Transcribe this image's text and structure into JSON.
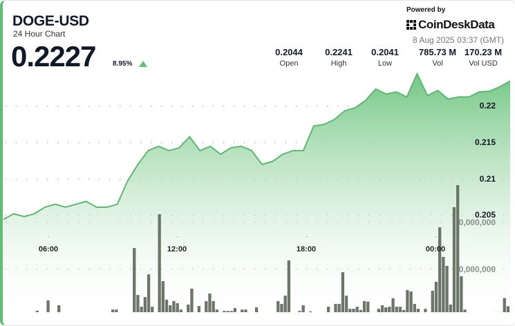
{
  "header": {
    "symbol": "DOGE-USD",
    "subtitle": "24 Hour Chart",
    "price": "0.2227",
    "change": "8.95%",
    "change_direction": "up",
    "stats": [
      {
        "value": "0.2044",
        "label": "Open"
      },
      {
        "value": "0.2241",
        "label": "High"
      },
      {
        "value": "0.2041",
        "label": "Low"
      },
      {
        "value": "785.73 M",
        "label": "Vol"
      },
      {
        "value": "170.23 M",
        "label": "Vol USD"
      }
    ],
    "powered_by": "Powered by",
    "brand": "CoinDeskData",
    "timestamp": "8 Aug 2025 03:37 (GMT)"
  },
  "colors": {
    "accent": "#5fbf72",
    "line": "#5cb96f",
    "bars": "#6b7568",
    "text": "#111827"
  },
  "chart_data": {
    "type": "area",
    "price_axis": {
      "ticks": [
        "0.22",
        "0.215",
        "0.21",
        "0.205"
      ],
      "tick_values": [
        0.22,
        0.215,
        0.21,
        0.205
      ]
    },
    "volume_axis": {
      "ticks": [
        "0,000,000",
        "0,000,000"
      ]
    },
    "time_ticks": [
      "06:00",
      "12:00",
      "18:00",
      "00:00"
    ],
    "grid": true,
    "price_series": [
      0.2043,
      0.2051,
      0.2047,
      0.2051,
      0.206,
      0.2064,
      0.206,
      0.2064,
      0.2068,
      0.206,
      0.206,
      0.2064,
      0.2096,
      0.2119,
      0.2138,
      0.2144,
      0.2138,
      0.2142,
      0.2157,
      0.2138,
      0.2144,
      0.2133,
      0.2142,
      0.2144,
      0.2138,
      0.2119,
      0.2123,
      0.2133,
      0.2138,
      0.2138,
      0.2172,
      0.2174,
      0.2181,
      0.2193,
      0.2197,
      0.2207,
      0.2223,
      0.2216,
      0.2219,
      0.2212,
      0.2244,
      0.2214,
      0.2221,
      0.2209,
      0.2212,
      0.2212,
      0.2219,
      0.222,
      0.2226,
      0.2234
    ],
    "volume_series_millions": [
      1,
      1,
      1.5,
      1,
      1,
      1,
      1,
      1,
      1.5,
      2.1,
      1,
      1.5,
      6.5,
      1,
      1,
      4.4,
      1,
      1,
      1,
      1,
      1,
      1,
      1,
      1,
      1,
      1,
      1,
      1,
      1,
      1,
      2.6,
      2.6,
      1,
      1,
      1,
      1,
      28.8,
      8.8,
      3.8,
      7.9,
      17.6,
      3.8,
      1.5,
      43.2,
      14.7,
      6.8,
      4.4,
      6.2,
      5.3,
      2.6,
      1.2,
      4.7,
      11.5,
      1.5,
      4.1,
      1,
      6.2,
      9.4,
      6.2,
      2.6,
      1.5,
      2,
      2,
      2,
      3.2,
      1,
      2.6,
      2.6,
      1,
      1,
      3.5,
      1,
      1,
      1,
      1.5,
      1,
      6.2,
      5,
      8.5,
      23.5,
      1,
      1,
      2,
      4.4,
      1,
      1.8,
      1,
      1,
      1,
      1,
      3.8,
      1,
      5,
      5,
      18.5,
      8.5,
      2.9,
      2.9,
      3.8,
      2.4,
      6.2,
      6,
      1.5,
      1.5,
      2.9,
      4.4,
      3.5,
      3.8,
      7.4,
      3.8,
      3.8,
      2.4,
      10.9,
      10.3,
      5,
      2.9,
      1,
      2.9,
      1,
      10.6,
      14.4,
      37.6,
      25,
      21.2,
      4.7,
      46.2,
      55.6,
      16.8,
      2.6,
      1,
      1,
      1,
      1,
      1,
      1,
      1,
      1.5,
      1.5,
      1.5,
      7.5,
      4
    ]
  }
}
